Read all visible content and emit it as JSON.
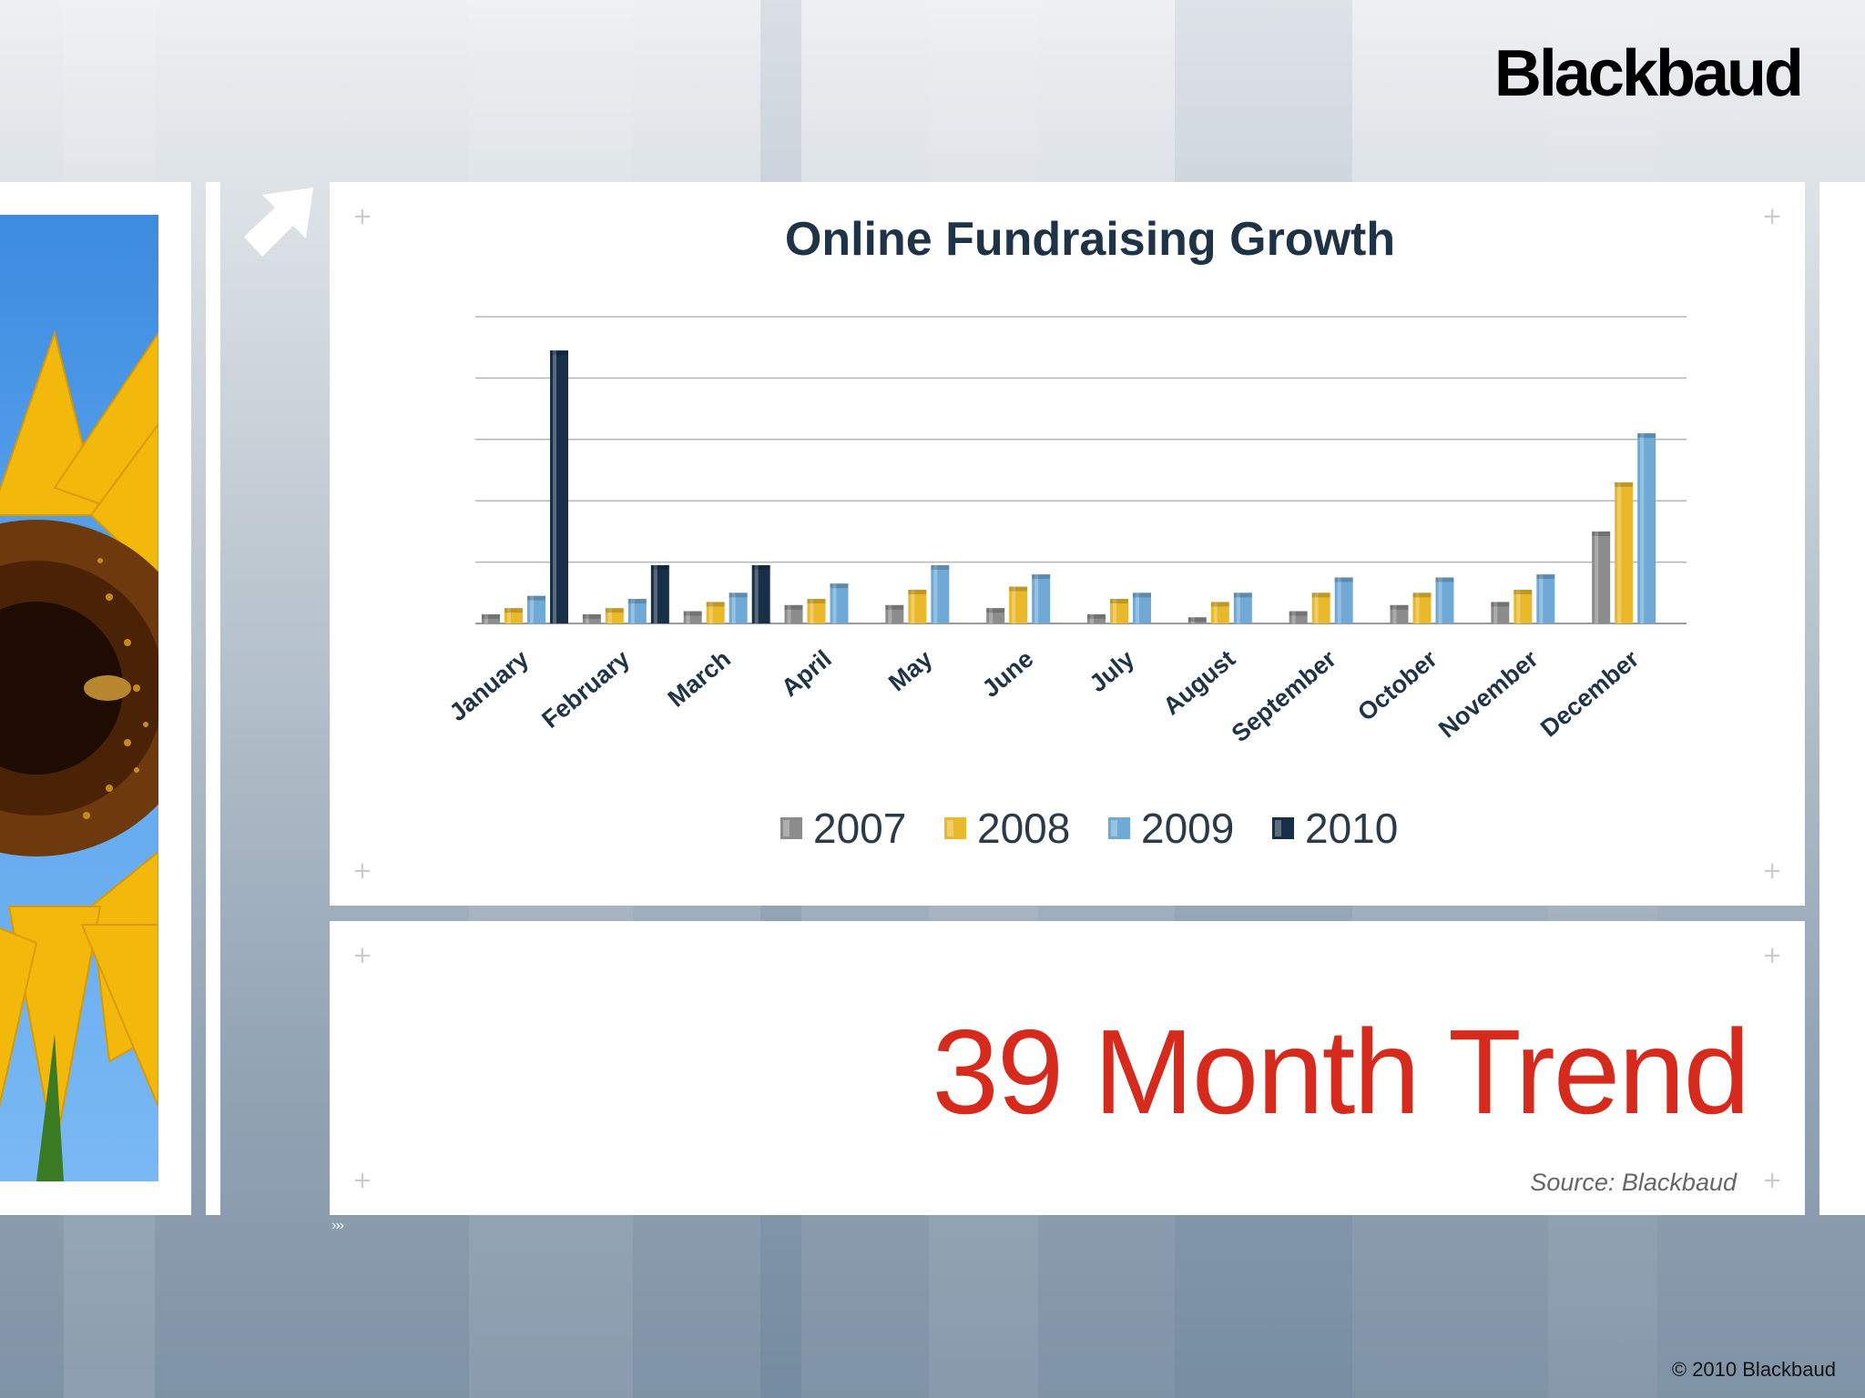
{
  "header": {
    "logo_text": "Blackbaud"
  },
  "chart_data": {
    "type": "bar",
    "title": "Online Fundraising Growth",
    "categories": [
      "January",
      "February",
      "March",
      "April",
      "May",
      "June",
      "July",
      "August",
      "September",
      "October",
      "November",
      "December"
    ],
    "series": [
      {
        "name": "2007",
        "color": "#8c8c8c",
        "values": [
          3,
          3,
          4,
          6,
          6,
          5,
          3,
          2,
          4,
          6,
          7,
          30
        ]
      },
      {
        "name": "2008",
        "color": "#e9b92b",
        "values": [
          5,
          5,
          7,
          8,
          11,
          12,
          8,
          7,
          10,
          10,
          11,
          46
        ]
      },
      {
        "name": "2009",
        "color": "#6fa9d6",
        "values": [
          9,
          8,
          10,
          13,
          19,
          16,
          10,
          10,
          15,
          15,
          16,
          62
        ]
      },
      {
        "name": "2010",
        "color": "#173048",
        "values": [
          89,
          19,
          19,
          null,
          null,
          null,
          null,
          null,
          null,
          null,
          null,
          null
        ]
      }
    ],
    "ylim": [
      0,
      100
    ],
    "gridlines": 6,
    "grid": true,
    "legend_position": "bottom"
  },
  "slide": {
    "headline": "39 Month Trend",
    "source": "Source:  Blackbaud",
    "chevrons": "›››",
    "copyright": "© 2010 Blackbaud"
  },
  "colors": {
    "headline": "#d62b1c",
    "title": "#1e3346"
  },
  "icons": {
    "corner": "plus",
    "top_arrow": "arrow-up-right-icon"
  }
}
